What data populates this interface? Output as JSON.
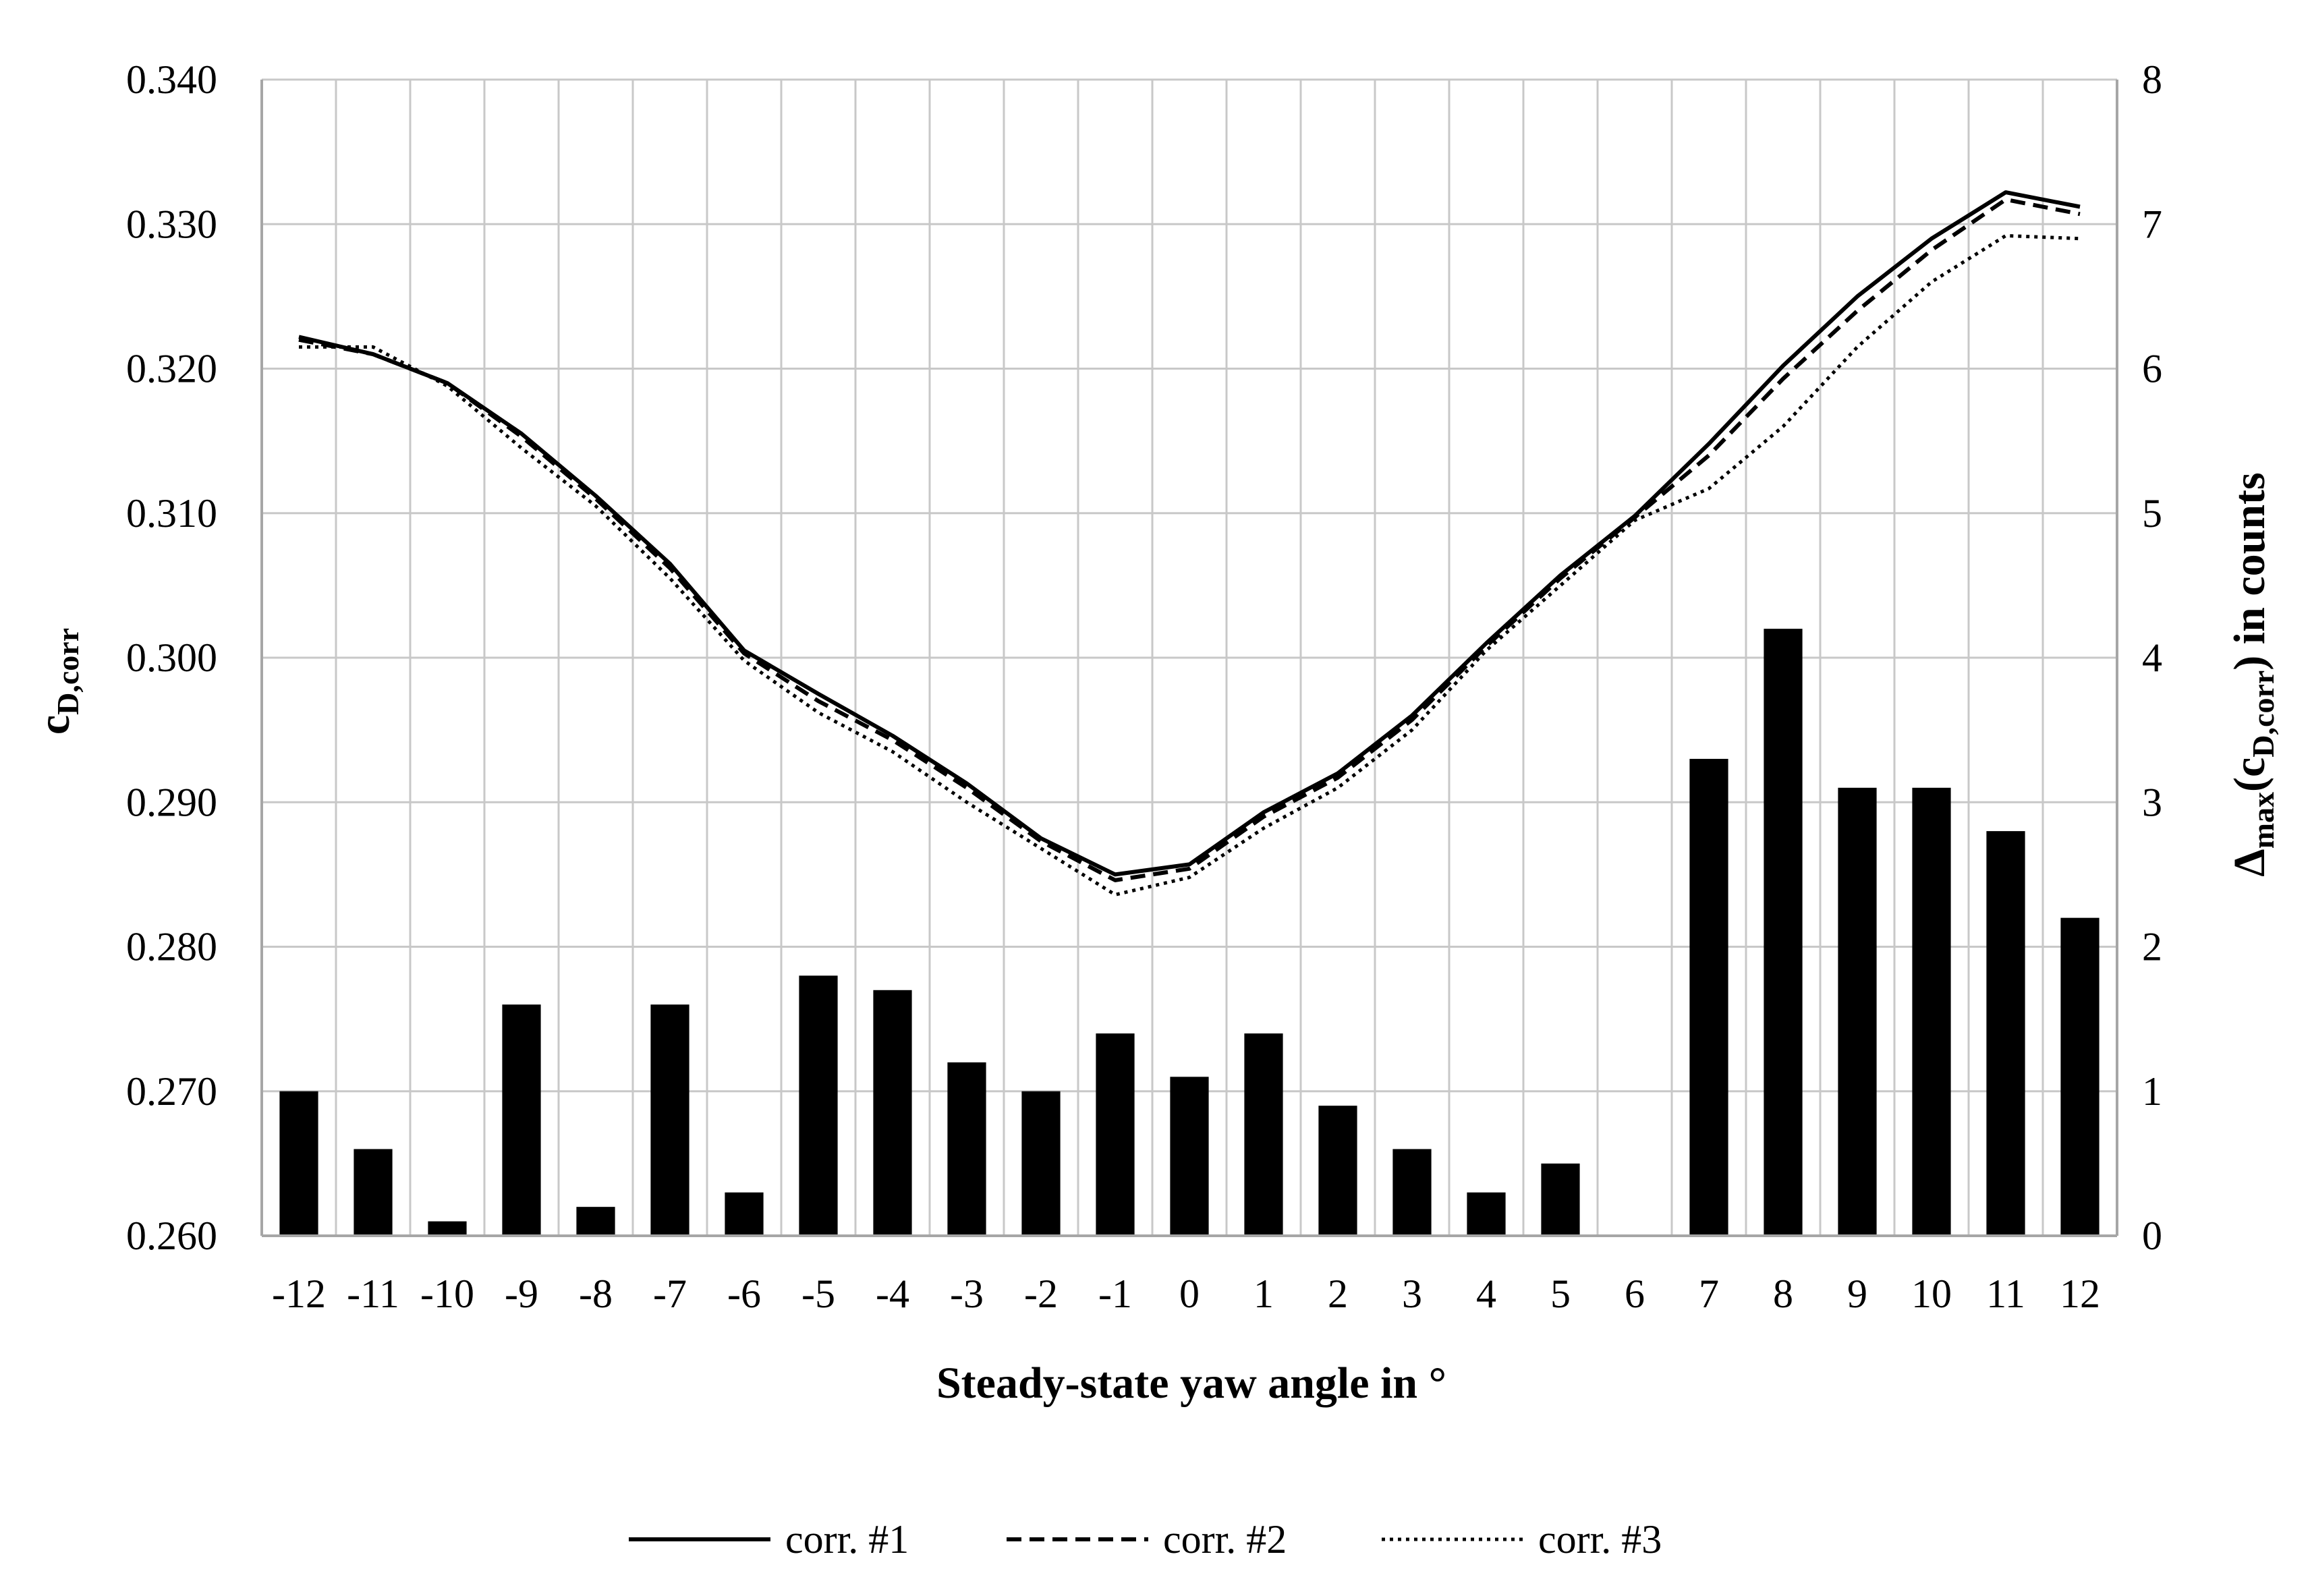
{
  "chart_data": {
    "type": "bar",
    "xlabel": "Steady-state yaw angle in °",
    "ylabel_left": {
      "base": "c",
      "sub": "D,corr"
    },
    "ylabel_right": {
      "base": "Δ",
      "sub1": "max",
      "mid": "(c",
      "sub2": "D,corr",
      "tail": ") in counts"
    },
    "categories": [
      "-12",
      "-11",
      "-10",
      "-9",
      "-8",
      "-7",
      "-6",
      "-5",
      "-4",
      "-3",
      "-2",
      "-1",
      "0",
      "1",
      "2",
      "3",
      "4",
      "5",
      "6",
      "7",
      "8",
      "9",
      "10",
      "11",
      "12"
    ],
    "x": [
      -12,
      -11,
      -10,
      -9,
      -8,
      -7,
      -6,
      -5,
      -4,
      -3,
      -2,
      -1,
      0,
      1,
      2,
      3,
      4,
      5,
      6,
      7,
      8,
      9,
      10,
      11,
      12
    ],
    "y_left": {
      "lim": [
        0.26,
        0.34
      ],
      "ticks": [
        "0.260",
        "0.270",
        "0.280",
        "0.290",
        "0.300",
        "0.310",
        "0.320",
        "0.330",
        "0.340"
      ]
    },
    "y_right": {
      "lim": [
        0,
        8
      ],
      "ticks": [
        "0",
        "1",
        "2",
        "3",
        "4",
        "5",
        "6",
        "7",
        "8"
      ]
    },
    "grid": true,
    "bars": {
      "axis": "right",
      "color": "#000000",
      "values": [
        1.0,
        0.6,
        0.1,
        1.6,
        0.2,
        1.6,
        0.3,
        1.8,
        1.7,
        1.2,
        1.0,
        1.4,
        1.1,
        1.4,
        0.9,
        0.6,
        0.3,
        0.5,
        0.0,
        3.3,
        4.2,
        3.1,
        3.1,
        2.8,
        2.2
      ]
    },
    "series": [
      {
        "name": "corr. #1",
        "style": "solid",
        "values": [
          0.3222,
          0.321,
          0.319,
          0.3155,
          0.3112,
          0.3065,
          0.3005,
          0.2975,
          0.2946,
          0.2913,
          0.2875,
          0.285,
          0.2857,
          0.2893,
          0.292,
          0.296,
          0.301,
          0.3057,
          0.3098,
          0.3148,
          0.3202,
          0.325,
          0.329,
          0.3322,
          0.3312
        ]
      },
      {
        "name": "corr. #2",
        "style": "dashed",
        "values": [
          0.322,
          0.321,
          0.319,
          0.3153,
          0.311,
          0.3062,
          0.3003,
          0.297,
          0.2943,
          0.291,
          0.2873,
          0.2846,
          0.2854,
          0.289,
          0.2917,
          0.2957,
          0.3008,
          0.3055,
          0.3097,
          0.314,
          0.3193,
          0.324,
          0.3282,
          0.3317,
          0.3307
        ]
      },
      {
        "name": "corr. #3",
        "style": "dotted",
        "values": [
          0.3215,
          0.3215,
          0.3188,
          0.3145,
          0.3105,
          0.3055,
          0.2998,
          0.2962,
          0.2935,
          0.29,
          0.2868,
          0.2836,
          0.2848,
          0.2882,
          0.291,
          0.295,
          0.3005,
          0.305,
          0.3095,
          0.3117,
          0.316,
          0.3215,
          0.326,
          0.3292,
          0.329
        ]
      }
    ]
  }
}
